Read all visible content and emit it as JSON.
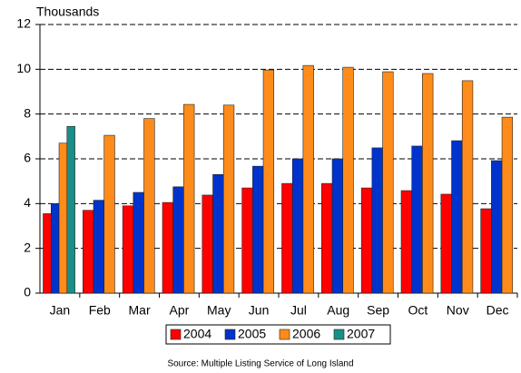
{
  "chart_data": {
    "type": "bar",
    "y_axis_label": "Thousands",
    "categories": [
      "Jan",
      "Feb",
      "Mar",
      "Apr",
      "May",
      "Jun",
      "Jul",
      "Aug",
      "Sep",
      "Oct",
      "Nov",
      "Dec"
    ],
    "series": [
      {
        "name": "2004",
        "color": "#ff0000",
        "values": [
          3.55,
          3.7,
          3.9,
          4.05,
          4.38,
          4.7,
          4.9,
          4.9,
          4.7,
          4.58,
          4.42,
          3.77
        ]
      },
      {
        "name": "2005",
        "color": "#0033cc",
        "values": [
          4.0,
          4.15,
          4.5,
          4.75,
          5.3,
          5.67,
          6.0,
          6.0,
          6.49,
          6.57,
          6.81,
          5.92
        ]
      },
      {
        "name": "2006",
        "color": "#ff8c1a",
        "values": [
          6.7,
          7.05,
          7.8,
          8.43,
          8.4,
          9.97,
          10.17,
          10.09,
          9.89,
          9.81,
          9.49,
          7.86
        ]
      },
      {
        "name": "2007",
        "color": "#1a8f88",
        "values": [
          7.45,
          null,
          null,
          null,
          null,
          null,
          null,
          null,
          null,
          null,
          null,
          null
        ]
      }
    ],
    "ylim": [
      0,
      12
    ],
    "yticks": [
      0,
      2,
      4,
      6,
      8,
      10,
      12
    ],
    "grid": true,
    "source": "Source:  Multiple Listing Service of Long Island"
  }
}
